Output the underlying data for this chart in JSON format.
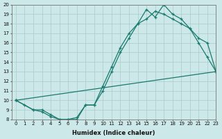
{
  "line1_x": [
    0,
    1,
    2,
    3,
    4,
    5,
    6,
    7,
    8,
    9,
    10,
    11,
    12,
    13,
    14,
    15,
    16,
    17,
    18,
    19,
    20,
    21,
    22,
    23
  ],
  "line1_y": [
    10.0,
    9.5,
    9.0,
    9.0,
    8.5,
    8.0,
    8.0,
    8.0,
    9.5,
    9.5,
    11.0,
    13.0,
    15.0,
    16.5,
    18.0,
    18.5,
    19.3,
    19.0,
    18.5,
    18.0,
    17.5,
    16.0,
    14.5,
    13.0
  ],
  "line2_x": [
    0,
    2,
    3,
    4,
    5,
    6,
    7,
    8,
    9,
    10,
    11,
    12,
    13,
    14,
    15,
    16,
    17,
    18,
    19,
    20,
    21,
    22,
    23
  ],
  "line2_y": [
    10.0,
    9.0,
    8.8,
    8.3,
    8.0,
    8.0,
    8.2,
    9.5,
    9.5,
    11.5,
    13.5,
    15.5,
    17.0,
    18.0,
    19.5,
    18.7,
    20.0,
    19.0,
    18.5,
    17.5,
    16.5,
    16.0,
    13.0
  ],
  "line3_x": [
    0,
    23
  ],
  "line3_y": [
    10.0,
    13.0
  ],
  "color": "#1a7a6e",
  "bg_color": "#cce8e8",
  "grid_color": "#aacccc",
  "xlabel": "Humidex (Indice chaleur)",
  "xlim": [
    -0.5,
    23
  ],
  "ylim": [
    8,
    20
  ],
  "xticks": [
    0,
    1,
    2,
    3,
    4,
    5,
    6,
    7,
    8,
    9,
    10,
    11,
    12,
    13,
    14,
    15,
    16,
    17,
    18,
    19,
    20,
    21,
    22,
    23
  ],
  "yticks": [
    8,
    9,
    10,
    11,
    12,
    13,
    14,
    15,
    16,
    17,
    18,
    19,
    20
  ],
  "marker": "+",
  "markersize": 3,
  "linewidth": 0.9,
  "tick_fontsize": 5.0,
  "xlabel_fontsize": 6.0
}
